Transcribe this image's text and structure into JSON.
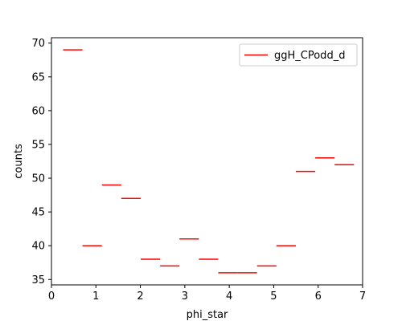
{
  "chart_data": {
    "type": "histogram-step",
    "title": "",
    "xlabel": "phi_star",
    "ylabel": "counts",
    "xlim": [
      0,
      7
    ],
    "ylim": [
      34.2,
      70.8
    ],
    "xticks": [
      0,
      1,
      2,
      3,
      4,
      5,
      6,
      7
    ],
    "yticks": [
      35,
      40,
      45,
      50,
      55,
      60,
      65,
      70
    ],
    "grid": false,
    "legend_position": "top-right",
    "series": [
      {
        "name": "ggH_CPodd_d",
        "color": "#ff0000",
        "bins": [
          {
            "x0": 0.2618,
            "x1": 0.6981,
            "y": 69
          },
          {
            "x0": 0.6981,
            "x1": 1.1345,
            "y": 40
          },
          {
            "x0": 1.1345,
            "x1": 1.5708,
            "y": 49
          },
          {
            "x0": 1.5708,
            "x1": 2.0071,
            "y": 47
          },
          {
            "x0": 2.0071,
            "x1": 2.4435,
            "y": 38
          },
          {
            "x0": 2.4435,
            "x1": 2.8798,
            "y": 37
          },
          {
            "x0": 2.8798,
            "x1": 3.3161,
            "y": 41
          },
          {
            "x0": 3.3161,
            "x1": 3.7525,
            "y": 38
          },
          {
            "x0": 3.7525,
            "x1": 4.1888,
            "y": 36
          },
          {
            "x0": 4.1888,
            "x1": 4.6251,
            "y": 36
          },
          {
            "x0": 4.6251,
            "x1": 5.0615,
            "y": 37
          },
          {
            "x0": 5.0615,
            "x1": 5.4978,
            "y": 40
          },
          {
            "x0": 5.4978,
            "x1": 5.9341,
            "y": 51
          },
          {
            "x0": 5.9341,
            "x1": 6.3705,
            "y": 53
          },
          {
            "x0": 6.3705,
            "x1": 6.8068,
            "y": 52
          }
        ]
      }
    ]
  }
}
